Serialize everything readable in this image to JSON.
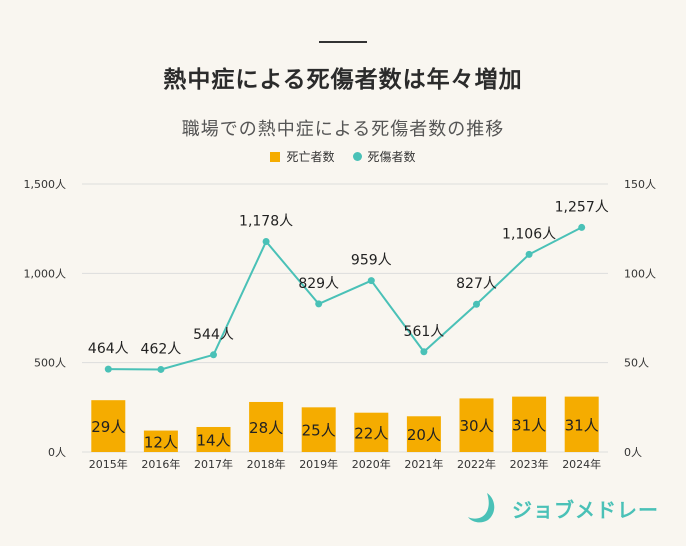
{
  "header": {
    "title": "熱中症による死傷者数は年々増加",
    "subtitle": "職場での熱中症による死傷者数の推移"
  },
  "colors": {
    "bar": "#f5ac00",
    "line": "#4ac1b7",
    "grid": "#dddddd",
    "text": "#333333"
  },
  "logo": {
    "text": "ジョブメドレー",
    "icon": "jobmedley-logo-icon"
  },
  "chart_data": {
    "type": "bar",
    "categories": [
      "2015年",
      "2016年",
      "2017年",
      "2018年",
      "2019年",
      "2020年",
      "2021年",
      "2022年",
      "2023年",
      "2024年"
    ],
    "series": [
      {
        "name": "死亡者数",
        "type": "bar",
        "axis": "right",
        "values": [
          29,
          12,
          14,
          28,
          25,
          22,
          20,
          30,
          31,
          31
        ],
        "labels": [
          "29人",
          "12人",
          "14人",
          "28人",
          "25人",
          "22人",
          "20人",
          "30人",
          "31人",
          "31人"
        ]
      },
      {
        "name": "死傷者数",
        "type": "line",
        "axis": "left",
        "values": [
          464,
          462,
          544,
          1178,
          829,
          959,
          561,
          827,
          1106,
          1257
        ],
        "labels": [
          "464人",
          "462人",
          "544人",
          "1,178人",
          "829人",
          "959人",
          "561人",
          "827人",
          "1,106人",
          "1,257人"
        ]
      }
    ],
    "y_left": {
      "ylim": [
        0,
        1500
      ],
      "ticks": [
        "0人",
        "500人",
        "1,000人",
        "1,500人"
      ]
    },
    "y_right": {
      "ylim": [
        0,
        150
      ],
      "ticks": [
        "0人",
        "50人",
        "100人",
        "150人"
      ]
    },
    "grid": true,
    "legend_position": "top-center"
  }
}
